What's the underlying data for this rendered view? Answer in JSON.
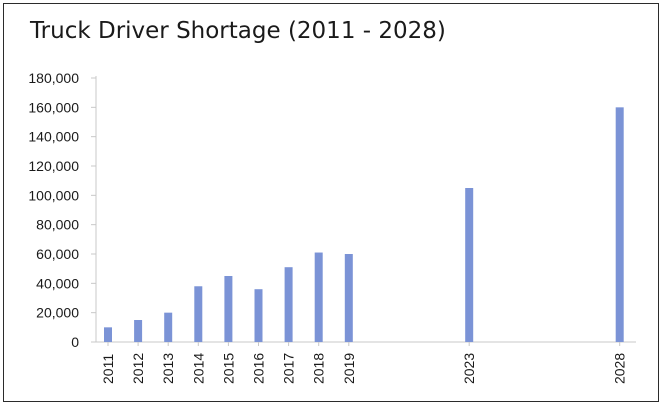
{
  "chart_data": {
    "type": "bar",
    "title": "Truck Driver Shortage (2011 - 2028)",
    "xlabel": "",
    "ylabel": "",
    "categories": [
      "2011",
      "2012",
      "2013",
      "2014",
      "2015",
      "2016",
      "2017",
      "2018",
      "2019",
      "2023",
      "2028"
    ],
    "values": [
      10000,
      15000,
      20000,
      38000,
      45000,
      36000,
      51000,
      61000,
      60000,
      105000,
      160000
    ],
    "ylim": [
      0,
      180000
    ],
    "yticks": [
      "0",
      "20,000",
      "40,000",
      "60,000",
      "80,000",
      "100,000",
      "120,000",
      "140,000",
      "160,000",
      "180,000"
    ],
    "ytick_values": [
      0,
      20000,
      40000,
      60000,
      80000,
      100000,
      120000,
      140000,
      160000,
      180000
    ],
    "x_scale": "year",
    "bar_color": "#7b93d6",
    "grid": false,
    "legend": "none"
  }
}
